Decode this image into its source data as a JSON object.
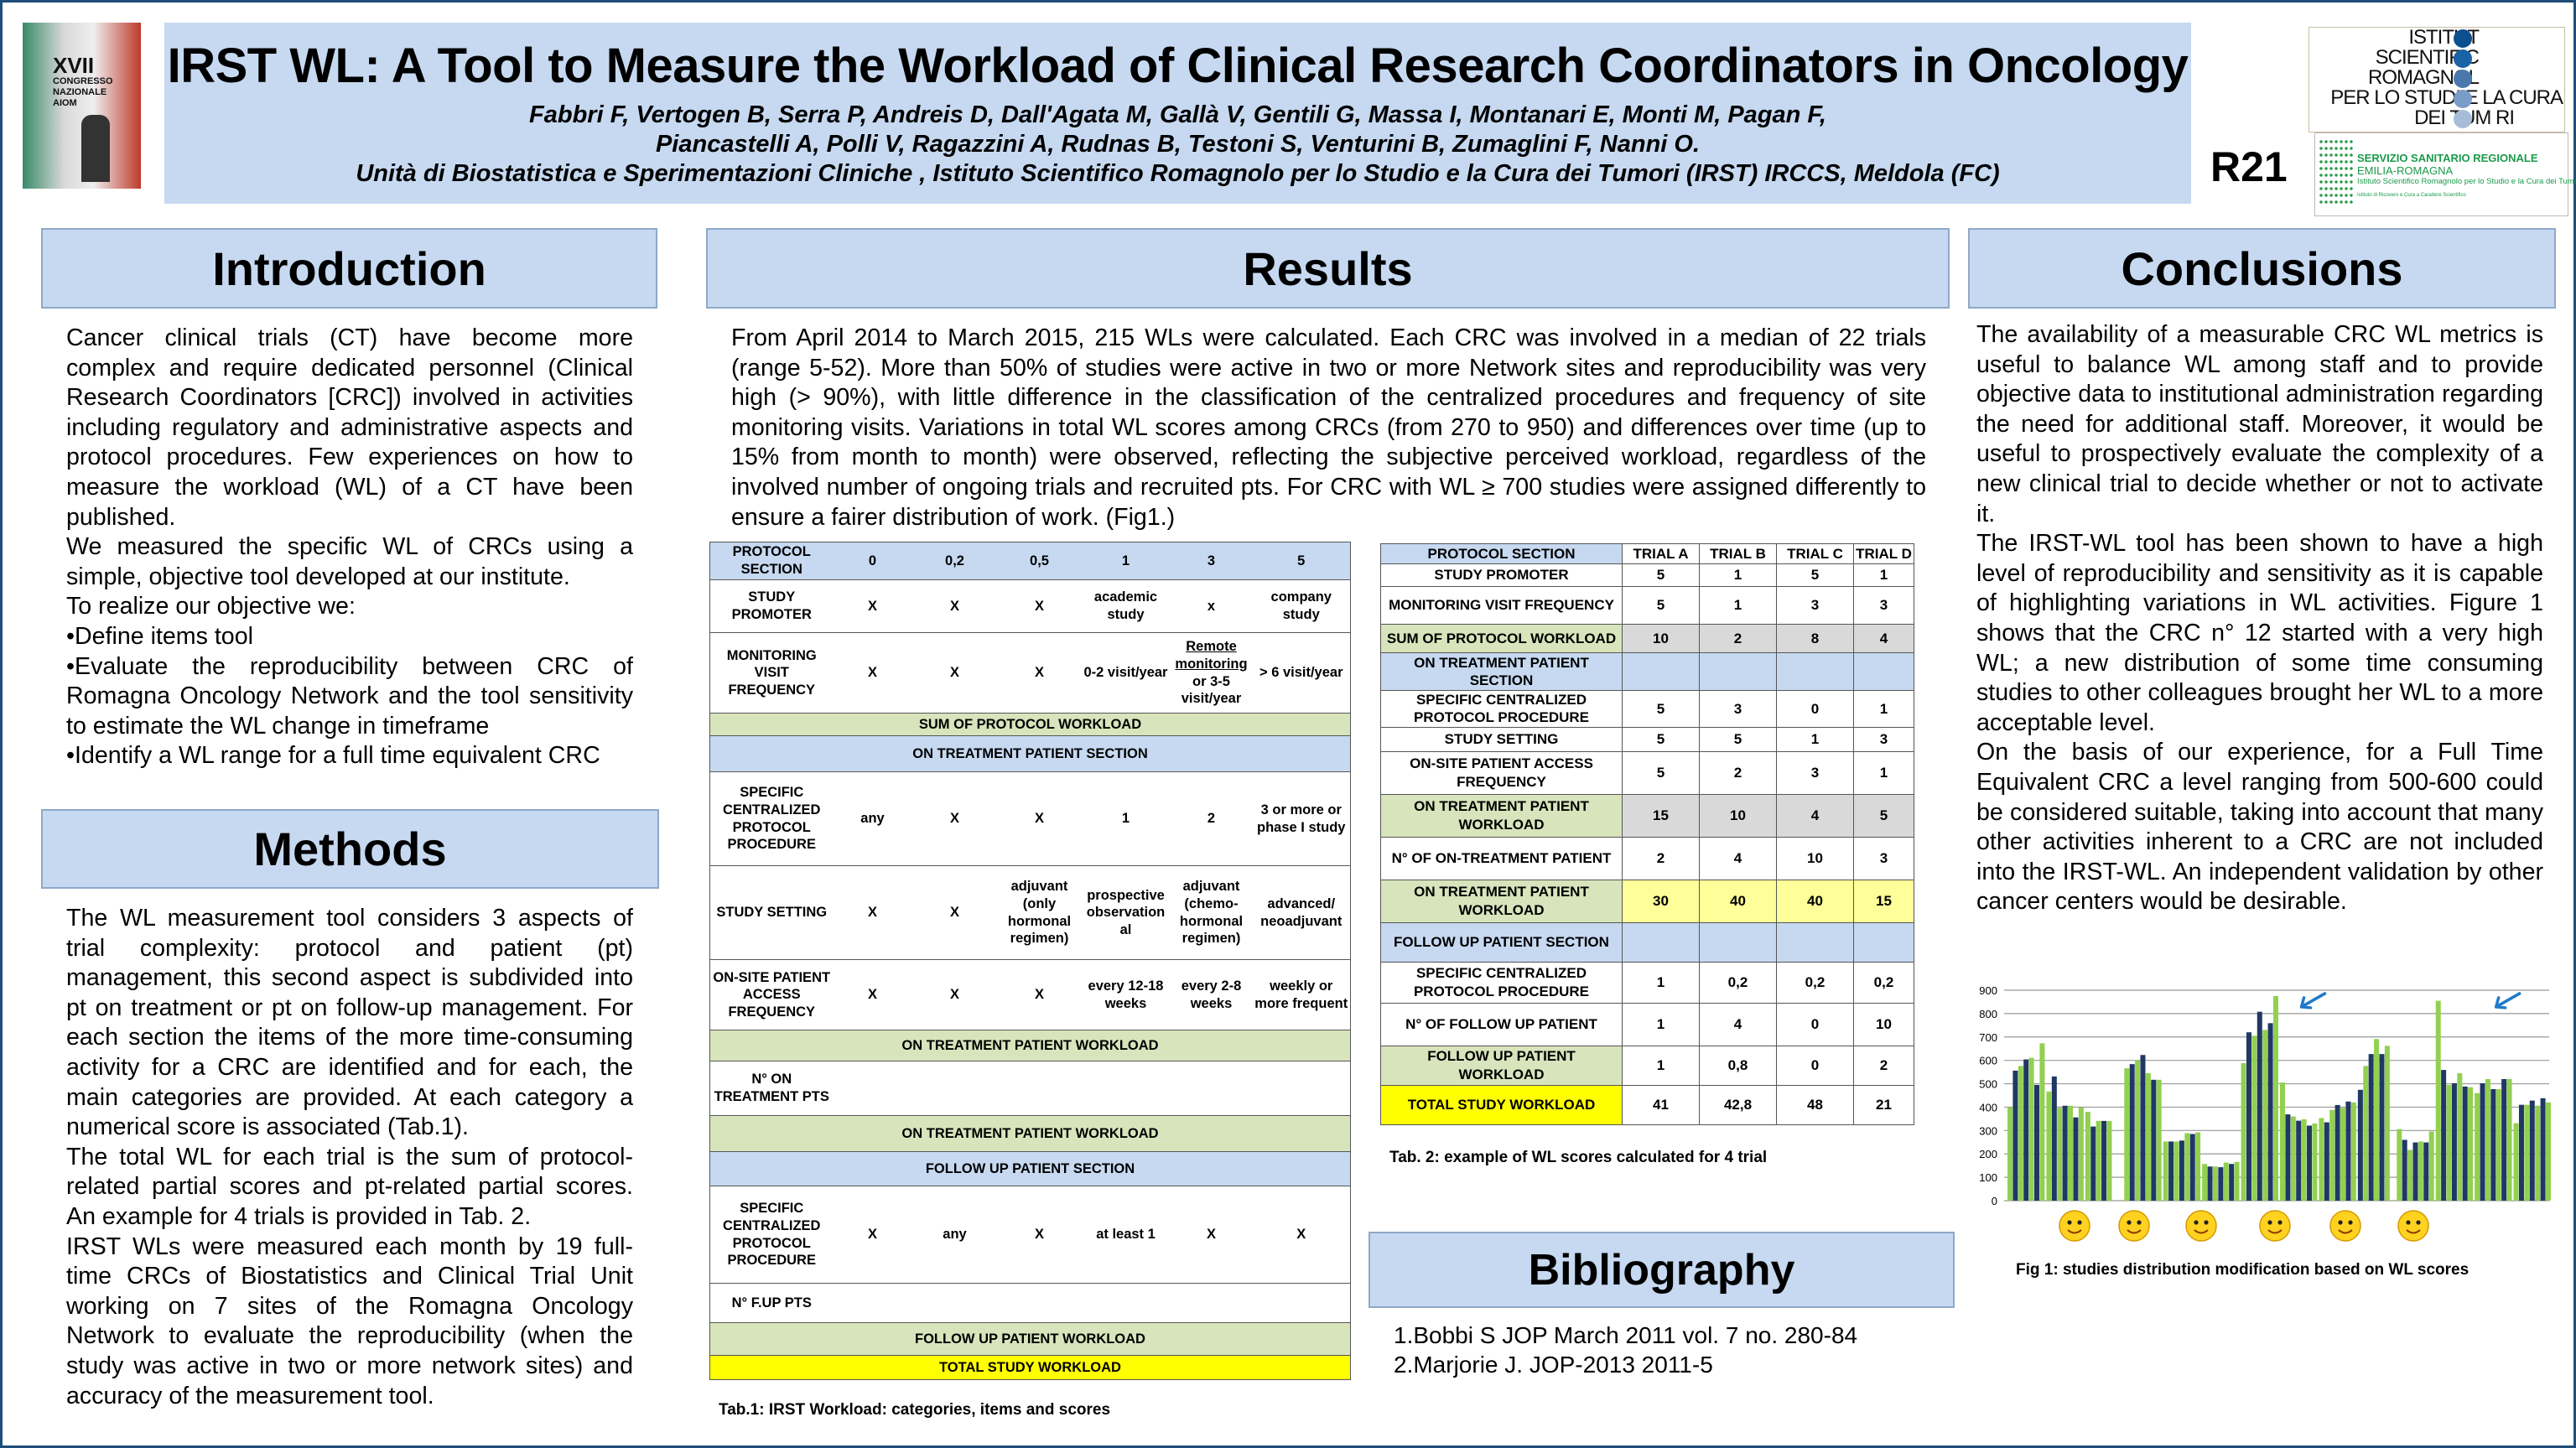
{
  "header": {
    "title": "IRST WL: A Tool to Measure the Workload of Clinical Research Coordinators in Oncology",
    "authors_line1": "Fabbri F, Vertogen B, Serra P, Andreis D, Dall'Agata M, Gallà V, Gentili G, Massa I, Montanari E, Monti M, Pagan F,",
    "authors_line2": "Piancastelli A, Polli V, Ragazzini A, Rudnas B, Testoni S,  Venturini B, Zumaglini F, Nanni O.",
    "affiliation": "Unità di Biostatistica e Sperimentazioni Cliniche ,  Istituto Scientifico Romagnolo per lo Studio e la Cura dei Tumori (IRST) IRCCS, Meldola (FC)",
    "poster_code": "R21",
    "congress_logo": "XVII CONGRESSO NAZIONALE AIOM",
    "irst_logo": [
      "ISTITUT",
      "SCIENTIFIC",
      "ROMAGNOL",
      "PER LO STUDI  E LA CURA",
      "DEI TUM RI"
    ],
    "ssr_logo": [
      "SERVIZIO SANITARIO REGIONALE",
      "EMILIA-ROMAGNA",
      "Istituto Scientifico Romagnolo per lo Studio e la Cura dei Tumori",
      "Istituto di Ricovero e Cura a Carattere Scientifico"
    ]
  },
  "introduction": {
    "title": "Introduction",
    "paragraphs": [
      "Cancer clinical trials (CT) have become more complex and require dedicated personnel (Clinical Research Coordinators [CRC]) involved in activities including regulatory and administrative aspects and protocol procedures. Few experiences on how to measure the workload (WL) of a CT have been published.",
      "We measured the specific WL of CRCs using a simple, objective tool developed at our institute.",
      "To realize our objective we:",
      "•Define items tool",
      "•Evaluate the reproducibility between CRC of Romagna Oncology Network and the tool sensitivity to estimate the WL change in timeframe",
      "•Identify a WL range for a full time equivalent CRC"
    ]
  },
  "methods": {
    "title": "Methods",
    "paragraphs": [
      "The WL measurement tool considers 3 aspects of trial complexity: protocol and patient (pt) management, this second aspect is subdivided into pt on treatment or pt on follow-up management. For each section the items of the more time-consuming activity for a CRC are identified and for each, the main categories are provided. At each category a numerical score is associated (Tab.1).",
      "The total WL for each trial is the sum of protocol-related partial scores and pt-related partial scores. An example for 4 trials is provided in Tab. 2.",
      "IRST WLs were measured each month by 19 full-time CRCs of Biostatistics and Clinical Trial Unit working on 7 sites of the Romagna Oncology Network to evaluate the reproducibility (when the study was active in two or more network sites) and accuracy of the measurement tool."
    ]
  },
  "results": {
    "title": "Results",
    "text": "From April 2014 to March 2015, 215 WLs were calculated. Each CRC was involved in a median of 22 trials (range 5-52). More than 50% of studies were active in two or more Network sites and reproducibility was very high (> 90%), with little difference in the classification of the centralized procedures and frequency of site monitoring visits. Variations in total WL scores among CRCs (from 270 to 950) and differences over time (up to 15% from month to month) were observed, reflecting the subjective perceived workload, regardless of the involved number of ongoing trials and recruited pts.  For CRC with WL ≥ 700 studies were assigned differently to ensure a fairer distribution of work. (Fig1.)"
  },
  "table1": {
    "caption": "Tab.1: IRST Workload:  categories, items and scores",
    "rows": [
      {
        "type": "blue",
        "cells": [
          "PROTOCOL SECTION",
          "0",
          "0,2",
          "0,5",
          "1",
          "3",
          "5"
        ]
      },
      {
        "type": "item",
        "cells": [
          "STUDY PROMOTER",
          "X",
          "X",
          "X",
          "academic study",
          "x",
          "company study"
        ]
      },
      {
        "type": "item",
        "cells": [
          "MONITORING VISIT FREQUENCY",
          "X",
          "X",
          "X",
          "0-2 visit/year",
          "Remote monitoring or 3-5 visit/year",
          "> 6 visit/year"
        ]
      },
      {
        "type": "green",
        "cells": [
          "SUM OF PROTOCOL WORKLOAD"
        ]
      },
      {
        "type": "blue",
        "cells": [
          "ON TREATMENT PATIENT SECTION"
        ]
      },
      {
        "type": "item",
        "cells": [
          "SPECIFIC CENTRALIZED PROTOCOL PROCEDURE",
          "any",
          "X",
          "X",
          "1",
          "2",
          "3 or more or phase I study"
        ]
      },
      {
        "type": "item",
        "cells": [
          "STUDY SETTING",
          "X",
          "X",
          "adjuvant (only hormonal regimen)",
          "prospective observation al",
          "adjuvant (chemo-hormonal regimen)",
          "advanced/ neoadjuvant"
        ]
      },
      {
        "type": "item",
        "cells": [
          "ON-SITE PATIENT ACCESS FREQUENCY",
          "X",
          "X",
          "X",
          "every 12-18 weeks",
          "every 2-8 weeks",
          "weekly or more frequent"
        ]
      },
      {
        "type": "green",
        "cells": [
          "ON TREATMENT  PATIENT WORKLOAD"
        ]
      },
      {
        "type": "item",
        "cells": [
          "N°  ON TREATMENT PTS",
          "",
          "",
          "",
          "",
          "",
          ""
        ]
      },
      {
        "type": "green",
        "cells": [
          "ON TREATMENT PATIENT WORKLOAD"
        ]
      },
      {
        "type": "blue",
        "cells": [
          "FOLLOW UP PATIENT SECTION"
        ]
      },
      {
        "type": "item",
        "cells": [
          "SPECIFIC CENTRALIZED PROTOCOL PROCEDURE",
          "X",
          "any",
          "X",
          "at least 1",
          "X",
          "X"
        ]
      },
      {
        "type": "item",
        "cells": [
          "N°  F.UP PTS",
          "",
          "",
          "",
          "",
          "",
          ""
        ]
      },
      {
        "type": "green",
        "cells": [
          "FOLLOW UP PATIENT WORKLOAD"
        ]
      },
      {
        "type": "yellow",
        "cells": [
          "TOTAL STUDY WORKLOAD"
        ]
      }
    ]
  },
  "table2": {
    "caption": "Tab. 2: example  of  WL scores  calculated  for  4 trial",
    "rows": [
      {
        "label_bg": "blue",
        "bg": "white",
        "cells": [
          "PROTOCOL SECTION",
          "TRIAL A",
          "TRIAL B",
          "TRIAL C",
          "TRIAL D"
        ]
      },
      {
        "label_bg": "white",
        "bg": "white",
        "cells": [
          "STUDY PROMOTER",
          "5",
          "1",
          "5",
          "1"
        ]
      },
      {
        "label_bg": "white",
        "bg": "white",
        "cells": [
          "MONITORING VISIT FREQUENCY",
          "5",
          "1",
          "3",
          "3"
        ]
      },
      {
        "label_bg": "green",
        "bg": "grey",
        "cells": [
          "SUM OF  PROTOCOL WORKLOAD",
          "10",
          "2",
          "8",
          "4"
        ]
      },
      {
        "label_bg": "blue",
        "bg": "blue",
        "cells": [
          "ON TREATMENT PATIENT SECTION",
          "",
          "",
          "",
          ""
        ]
      },
      {
        "label_bg": "white",
        "bg": "white",
        "cells": [
          "SPECIFIC CENTRALIZED PROTOCOL PROCEDURE",
          "5",
          "3",
          "0",
          "1"
        ]
      },
      {
        "label_bg": "white",
        "bg": "white",
        "cells": [
          "STUDY SETTING",
          "5",
          "5",
          "1",
          "3"
        ]
      },
      {
        "label_bg": "white",
        "bg": "white",
        "cells": [
          "ON-SITE PATIENT ACCESS FREQUENCY",
          "5",
          "2",
          "3",
          "1"
        ]
      },
      {
        "label_bg": "green",
        "bg": "grey",
        "cells": [
          "ON TREATMENT  PATIENT WORKLOAD",
          "15",
          "10",
          "4",
          "5"
        ]
      },
      {
        "label_bg": "white",
        "bg": "white",
        "cells": [
          "N° OF ON-TREATMENT PATIENT",
          "2",
          "4",
          "10",
          "3"
        ]
      },
      {
        "label_bg": "green",
        "bg": "lyellow",
        "cells": [
          "ON TREATMENT PATIENT WORKLOAD",
          "30",
          "40",
          "40",
          "15"
        ]
      },
      {
        "label_bg": "blue",
        "bg": "blue",
        "cells": [
          "FOLLOW UP PATIENT SECTION",
          "",
          "",
          "",
          ""
        ]
      },
      {
        "label_bg": "white",
        "bg": "white",
        "cells": [
          "SPECIFIC CENTRALIZED PROTOCOL PROCEDURE",
          "1",
          "0,2",
          "0,2",
          "0,2"
        ]
      },
      {
        "label_bg": "white",
        "bg": "white",
        "cells": [
          "N°  OF FOLLOW UP PATIENT",
          "1",
          "4",
          "0",
          "10"
        ]
      },
      {
        "label_bg": "green",
        "bg": "white",
        "cells": [
          "FOLLOW UP PATIENT WORKLOAD",
          "1",
          "0,8",
          "0",
          "2"
        ]
      },
      {
        "label_bg": "yellow",
        "bg": "white",
        "cells": [
          "TOTAL  STUDY WORKLOAD",
          "41",
          "42,8",
          "48",
          "21"
        ]
      }
    ]
  },
  "bibliography": {
    "title": "Bibliography",
    "items": [
      "1.Bobbi S JOP March 2011 vol. 7 no. 280-84",
      "2.Marjorie J. JOP-2013  2011-5"
    ]
  },
  "conclusions": {
    "title": "Conclusions",
    "paragraphs": [
      "The availability of a measurable CRC WL metrics is useful to balance WL among staff and to provide objective data to institutional administration regarding the need for additional staff. Moreover, it would be useful to prospectively evaluate the complexity of a new clinical trial to decide whether or not to activate it.",
      "The IRST-WL tool has been shown to have a high level of reproducibility and sensitivity as it is capable of highlighting variations in WL activities. Figure 1 shows that the CRC n° 12 started with a very high WL; a new distribution of some time consuming studies to other colleagues brought her WL to a more acceptable level.",
      "On the basis of our experience, for a Full Time Equivalent CRC a level ranging from 500-600 could be considered suitable, taking into account that many other activities inherent to a CRC are not included into the IRST-WL. An independent validation by other cancer centers would be desirable."
    ]
  },
  "chart_data": {
    "type": "bar",
    "title": "",
    "caption": "Fig 1: studies distribution  modification  based on WL scores",
    "ylim": [
      0,
      900
    ],
    "yticks": [
      "0",
      "100",
      "200",
      "300",
      "400",
      "500",
      "600",
      "700",
      "800",
      "900"
    ],
    "grid": true,
    "colors": {
      "green": "#92d050",
      "navy": "#1f3864"
    },
    "groups": [
      {
        "first": "green",
        "values": [
          400,
          556,
          576,
          604,
          611,
          495,
          673
        ]
      },
      {
        "first": "green",
        "values": [
          467,
          531,
          397,
          406,
          406,
          356,
          399
        ]
      },
      {
        "first": "green",
        "values": [
          380,
          317,
          341,
          341,
          341
        ]
      },
      {
        "first": "green",
        "values": [
          566,
          584,
          602,
          623,
          545,
          517,
          517
        ]
      },
      {
        "first": "green",
        "values": [
          253,
          253,
          253,
          257,
          289,
          285,
          292
        ]
      },
      {
        "first": "green",
        "values": [
          157,
          146,
          146,
          143,
          163,
          157,
          166
        ]
      },
      {
        "first": "green",
        "values": [
          588,
          720,
          705,
          808,
          730,
          759,
          875
        ]
      },
      {
        "first": "green",
        "values": [
          505,
          369,
          360,
          342,
          348,
          321,
          330
        ]
      },
      {
        "first": "green",
        "values": [
          353,
          335,
          388,
          409,
          397,
          424,
          420
        ]
      },
      {
        "first": "navy",
        "values": [
          474,
          576,
          627,
          691,
          627,
          662
        ]
      },
      {
        "first": "green",
        "values": [
          306,
          260,
          217,
          249,
          253,
          249,
          296
        ]
      },
      {
        "first": "green",
        "values": [
          855,
          559,
          495,
          502,
          545,
          488,
          485
        ]
      },
      {
        "first": "green",
        "values": [
          460,
          502,
          520,
          477,
          477,
          520,
          520
        ]
      },
      {
        "first": "green",
        "values": [
          331,
          410,
          410,
          428,
          406,
          438,
          420
        ]
      }
    ],
    "arrows_after_groups": [
      7,
      12
    ],
    "emoji_icons": [
      "smiley-chair-icon",
      "smiley-headphones-icon",
      "smiley-stressed-icon",
      "smiley-calm-icon",
      "smiley-apple-icon",
      "smiley-glasses-icon"
    ]
  }
}
